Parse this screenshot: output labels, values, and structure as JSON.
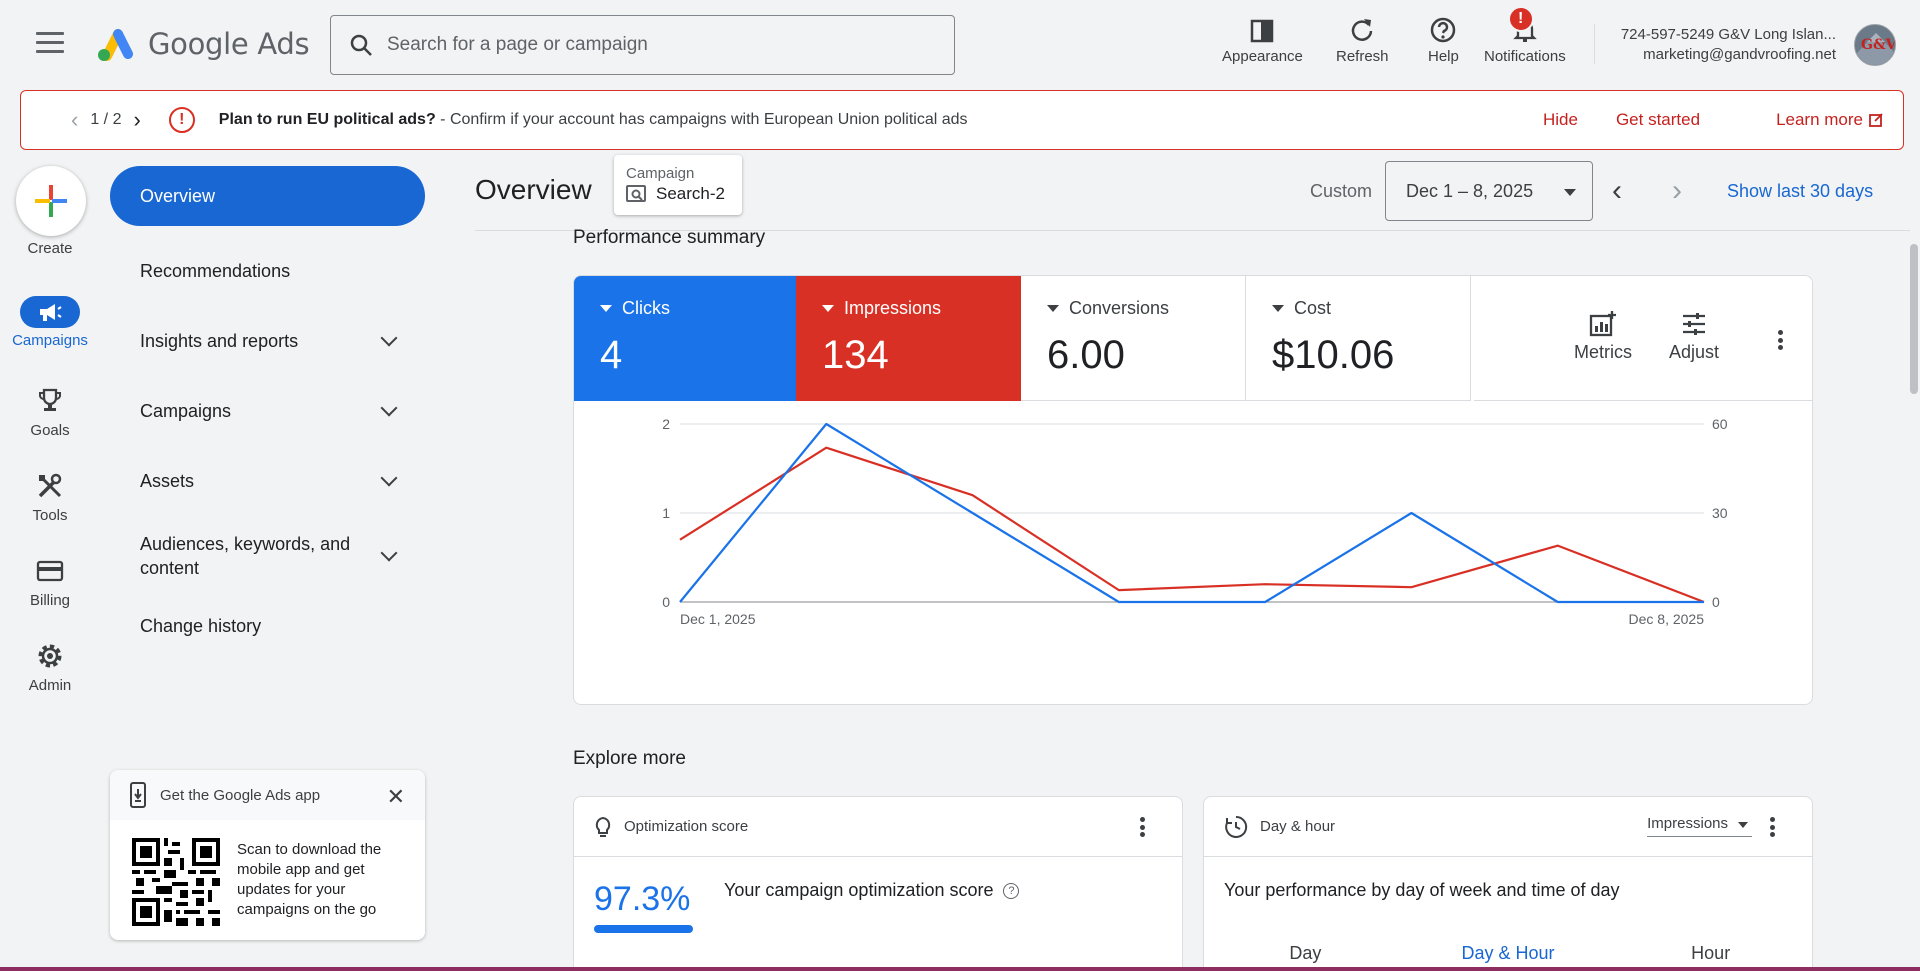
{
  "header": {
    "menu_icon": "hamburger-menu-icon",
    "product_name": "Google Ads",
    "search_placeholder": "Search for a page or campaign",
    "tools": [
      {
        "label": "Appearance",
        "icon": "appearance-icon"
      },
      {
        "label": "Refresh",
        "icon": "refresh-icon"
      },
      {
        "label": "Help",
        "icon": "help-icon"
      },
      {
        "label": "Notifications",
        "icon": "bell-icon",
        "badge": "!"
      }
    ],
    "account_name": "724-597-5249 G&V Long Islan...",
    "account_email": "marketing@gandvroofing.net",
    "avatar_text": "G&V"
  },
  "banner": {
    "pager": "1 / 2",
    "title": "Plan to run EU political ads?",
    "message": " - Confirm if your account has campaigns with European Union political ads",
    "actions": {
      "hide": "Hide",
      "get_started": "Get started",
      "learn_more": "Learn more"
    }
  },
  "rail": {
    "create": "Create",
    "items": [
      {
        "label": "Campaigns",
        "icon": "megaphone-icon",
        "active": true
      },
      {
        "label": "Goals",
        "icon": "trophy-icon"
      },
      {
        "label": "Tools",
        "icon": "tools-icon"
      },
      {
        "label": "Billing",
        "icon": "credit-card-icon"
      },
      {
        "label": "Admin",
        "icon": "gear-icon"
      }
    ]
  },
  "nav": {
    "items": [
      {
        "label": "Overview",
        "active": true
      },
      {
        "label": "Recommendations"
      },
      {
        "label": "Insights and reports",
        "expandable": true
      },
      {
        "label": "Campaigns",
        "expandable": true
      },
      {
        "label": "Assets",
        "expandable": true
      },
      {
        "label": "Audiences, keywords, and content",
        "expandable": true
      },
      {
        "label": "Change history"
      }
    ]
  },
  "promo": {
    "title": "Get the Google Ads app",
    "text": "Scan to download the mobile app and get updates for your campaigns on the go"
  },
  "main": {
    "title": "Overview",
    "campaign_label": "Campaign",
    "campaign_value": "Search-2",
    "date_custom": "Custom",
    "date_range": "Dec 1 – 8, 2025",
    "show_last": "Show last 30 days"
  },
  "performance": {
    "title": "Performance summary",
    "metrics": [
      {
        "name": "Clicks",
        "value": "4",
        "color": "#1a73e8"
      },
      {
        "name": "Impressions",
        "value": "134",
        "color": "#d93025"
      },
      {
        "name": "Conversions",
        "value": "6.00"
      },
      {
        "name": "Cost",
        "value": "$10.06"
      }
    ],
    "metrics_btn": "Metrics",
    "adjust_btn": "Adjust"
  },
  "chart_data": {
    "type": "line",
    "x": [
      "Dec 1, 2025",
      "Dec 2, 2025",
      "Dec 3, 2025",
      "Dec 4, 2025",
      "Dec 5, 2025",
      "Dec 6, 2025",
      "Dec 7, 2025",
      "Dec 8, 2025"
    ],
    "x_tick_labels": [
      "Dec 1, 2025",
      "Dec 8, 2025"
    ],
    "series": [
      {
        "name": "Clicks",
        "axis": "left",
        "color": "#1a73e8",
        "values": [
          0,
          2,
          1,
          0,
          0,
          1,
          0,
          0
        ]
      },
      {
        "name": "Impressions",
        "axis": "right",
        "color": "#d93025",
        "values": [
          21,
          52,
          36,
          4,
          6,
          5,
          19,
          0
        ]
      }
    ],
    "y_left_ticks": [
      "0",
      "1",
      "2"
    ],
    "y_right_ticks": [
      "0",
      "30",
      "60"
    ],
    "ylim_left": [
      0,
      2
    ],
    "ylim_right": [
      0,
      60
    ],
    "grid": true
  },
  "explore": {
    "title": "Explore more",
    "optimization": {
      "title": "Optimization score",
      "score": "97.3%",
      "score_value": 0.973,
      "caption": "Your campaign optimization score"
    },
    "dayhour": {
      "title": "Day & hour",
      "metric": "Impressions",
      "caption": "Your performance by day of week and time of day",
      "tabs": [
        "Day",
        "Day & Hour",
        "Hour"
      ],
      "active_tab": 1
    }
  }
}
